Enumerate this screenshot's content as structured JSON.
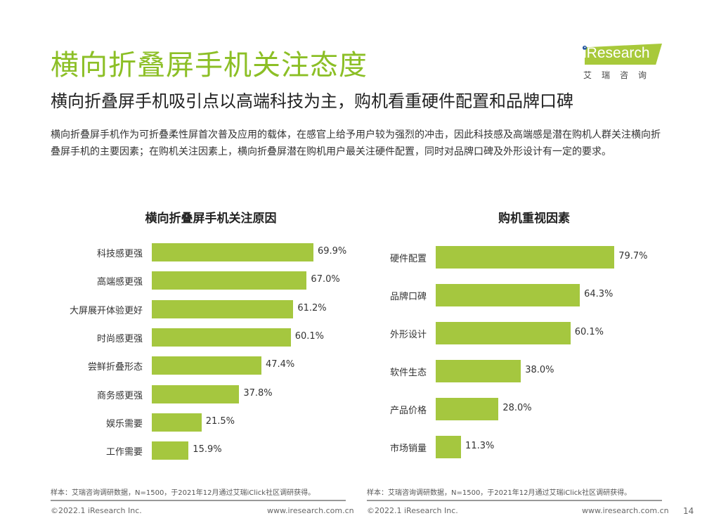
{
  "title": "横向折叠屏手机关注态度",
  "subtitle": "横向折叠屏手机吸引点以高端科技为主，购机看重硬件配置和品牌口碑",
  "description": "横向折叠屏手机作为可折叠柔性屏首次普及应用的载体，在感官上给予用户较为强烈的冲击，因此科技感及高端感是潜在购机人群关注横向折叠屏手机的主要因素；在购机关注因素上，横向折叠屏潜在购机用户最关注硬件配置，同时对品牌口碑及外形设计有一定的要求。",
  "logo": {
    "text": "iResearch",
    "cn": "艾瑞咨询"
  },
  "chart_data": [
    {
      "type": "bar",
      "orientation": "horizontal",
      "title": "横向折叠屏手机关注原因",
      "unit": "%",
      "categories": [
        "科技感更强",
        "高端感更强",
        "大屏展开体验更好",
        "时尚感更强",
        "尝鲜折叠形态",
        "商务感更强",
        "娱乐需要",
        "工作需要"
      ],
      "values": [
        69.9,
        67.0,
        61.2,
        60.1,
        47.4,
        37.8,
        21.5,
        15.9
      ],
      "labels": [
        "69.9%",
        "67.0%",
        "61.2%",
        "60.1%",
        "47.4%",
        "37.8%",
        "21.5%",
        "15.9%"
      ]
    },
    {
      "type": "bar",
      "orientation": "horizontal",
      "title": "购机重视因素",
      "unit": "%",
      "categories": [
        "硬件配置",
        "品牌口碑",
        "外形设计",
        "软件生态",
        "产品价格",
        "市场销量"
      ],
      "values": [
        79.7,
        64.3,
        60.1,
        38.0,
        28.0,
        11.3
      ],
      "labels": [
        "79.7%",
        "64.3%",
        "60.1%",
        "38.0%",
        "28.0%",
        "11.3%"
      ]
    }
  ],
  "notes": [
    "样本：艾瑞咨询调研数据，N=1500，于2021年12月通过艾瑞iClick社区调研获得。",
    "样本：艾瑞咨询调研数据，N=1500，于2021年12月通过艾瑞iClick社区调研获得。"
  ],
  "footer": {
    "copyright": "©2022.1 iResearch Inc.",
    "url": "www.iresearch.com.cn",
    "page": "14"
  },
  "colors": {
    "accent": "#8cbf26",
    "bar": "#a5c73f"
  }
}
